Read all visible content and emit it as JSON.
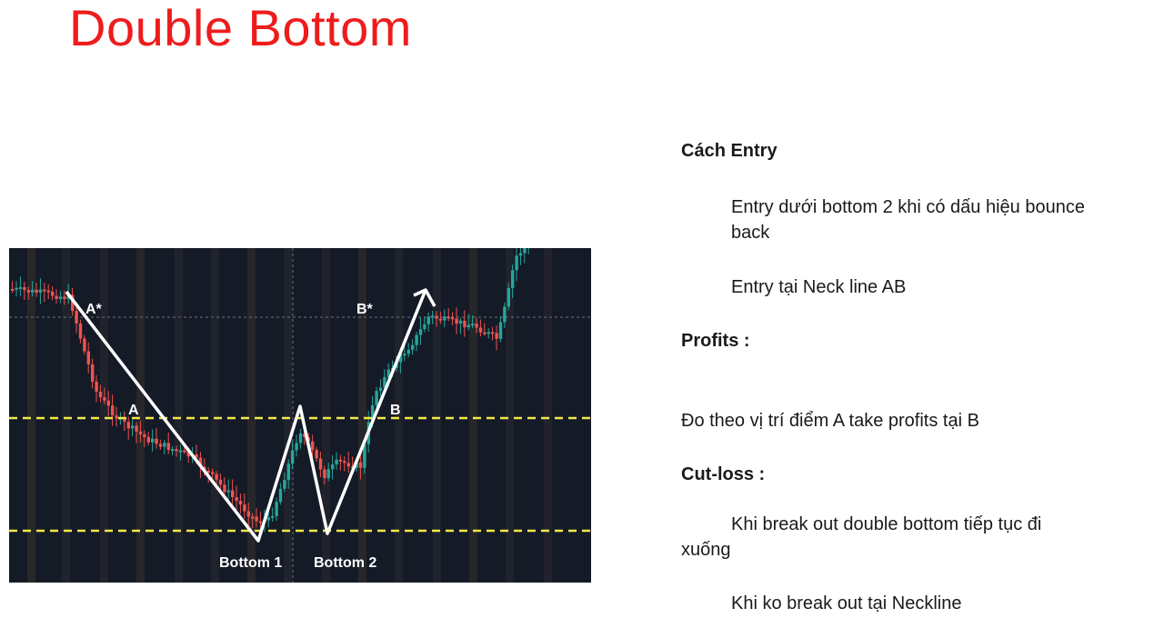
{
  "title": "Double Bottom",
  "chart": {
    "labels": {
      "a_star": "A*",
      "a": "A",
      "b_star": "B*",
      "b": "B",
      "bottom1": "Bottom 1",
      "bottom2": "Bottom 2"
    },
    "colors": {
      "background": "#151a27",
      "bull": "#26a69a",
      "bear": "#ef5350",
      "neckline": "#f2e84a",
      "pattern_line": "#ffffff"
    }
  },
  "notes": {
    "entry_heading": "Cách Entry",
    "entry_1_line1": "Entry  dưới bottom 2 khi có dấu hiệu bounce",
    "entry_1_line2": "back",
    "entry_2": "Entry tại Neck line AB",
    "profits_heading": "Profits :",
    "profits_text": "Đo theo vị trí điểm A take profits tại B",
    "cutloss_heading": "Cut-loss :",
    "cutloss_1_line1": "Khi break out double bottom tiếp tục đi",
    "cutloss_1_line2": "xuống",
    "cutloss_2": "Khi ko break out tại Neckline"
  }
}
